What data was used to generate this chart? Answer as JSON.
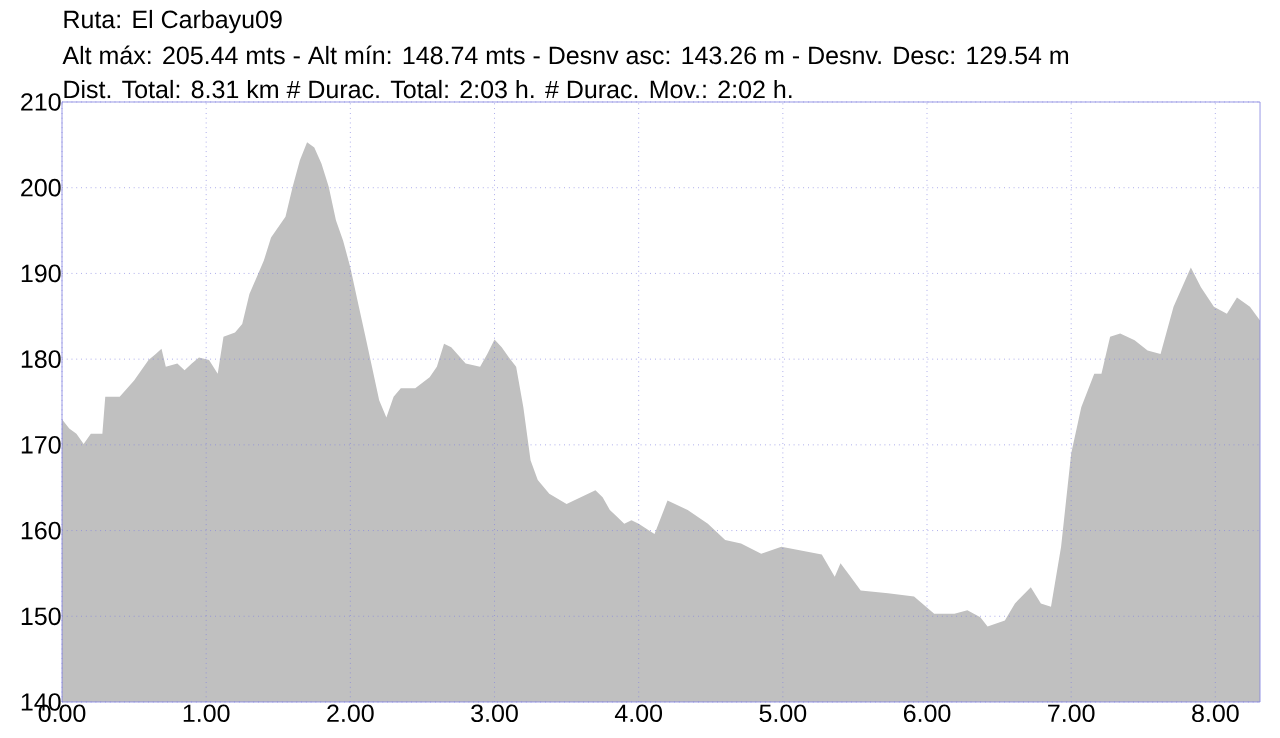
{
  "chart_data": {
    "type": "area",
    "title": "Ruta: El Carbayu09",
    "subtitle": "Alt máx: 205.44 mts - Alt mín: 148.74 mts - Desnv asc: 143.26 m - Desnv. Desc: 129.54 m",
    "annotations": [
      "Dist. Total: 8.31 km # Durac. Total: 2:03  h. # Durac. Mov.:  2:02  h."
    ],
    "x": [
      0,
      0.05,
      0.1,
      0.15,
      0.2,
      0.28,
      0.3,
      0.4,
      0.5,
      0.55,
      0.6,
      0.65,
      0.69,
      0.72,
      0.8,
      0.85,
      0.9,
      0.95,
      1.02,
      1.08,
      1.12,
      1.2,
      1.25,
      1.3,
      1.4,
      1.45,
      1.55,
      1.6,
      1.65,
      1.7,
      1.75,
      1.8,
      1.85,
      1.9,
      1.95,
      2.0,
      2.05,
      2.1,
      2.15,
      2.2,
      2.25,
      2.3,
      2.35,
      2.45,
      2.55,
      2.6,
      2.65,
      2.7,
      2.8,
      2.9,
      2.95,
      3.0,
      3.05,
      3.1,
      3.15,
      3.2,
      3.25,
      3.3,
      3.38,
      3.5,
      3.6,
      3.7,
      3.75,
      3.8,
      3.85,
      3.9,
      3.95,
      4.0,
      4.11,
      4.2,
      4.34,
      4.48,
      4.6,
      4.71,
      4.85,
      4.99,
      5.27,
      5.36,
      5.4,
      5.47,
      5.54,
      5.73,
      5.91,
      6.05,
      6.19,
      6.28,
      6.37,
      6.42,
      6.54,
      6.61,
      6.72,
      6.79,
      6.86,
      6.93,
      7.0,
      7.07,
      7.16,
      7.21,
      7.27,
      7.34,
      7.44,
      7.53,
      7.62,
      7.71,
      7.83,
      7.9,
      7.99,
      8.08,
      8.15,
      8.24,
      8.31
    ],
    "values": [
      173.0,
      171.9,
      171.3,
      170.1,
      171.3,
      171.3,
      175.6,
      175.6,
      177.5,
      178.7,
      179.9,
      180.6,
      181.2,
      179.1,
      179.5,
      178.7,
      179.5,
      180.2,
      179.9,
      178.3,
      182.6,
      183.1,
      184.1,
      187.6,
      191.5,
      194.2,
      196.6,
      200.1,
      203.2,
      205.3,
      204.7,
      202.8,
      200.1,
      196.2,
      193.8,
      190.7,
      186.8,
      183.0,
      179.1,
      175.2,
      173.2,
      175.6,
      176.6,
      176.6,
      177.9,
      179.1,
      181.8,
      181.4,
      179.5,
      179.1,
      180.6,
      182.3,
      181.4,
      180.2,
      179.1,
      174.4,
      168.2,
      165.9,
      164.3,
      163.1,
      163.9,
      164.7,
      163.9,
      162.4,
      161.6,
      160.8,
      161.2,
      160.8,
      159.6,
      163.5,
      162.4,
      160.8,
      158.9,
      158.5,
      157.3,
      158.1,
      157.2,
      154.6,
      156.2,
      154.6,
      153.0,
      152.7,
      152.3,
      150.3,
      150.3,
      150.7,
      149.9,
      148.8,
      149.5,
      151.5,
      153.4,
      151.5,
      151.1,
      158.1,
      169.0,
      174.4,
      178.3,
      178.3,
      182.6,
      183.0,
      182.2,
      181.0,
      180.6,
      186.1,
      190.7,
      188.4,
      186.1,
      185.3,
      187.2,
      186.1,
      184.5
    ],
    "color": "#c0c0c0",
    "grid": true,
    "xlim": [
      0,
      8.31
    ],
    "ylim": [
      140,
      210
    ],
    "xticks": [
      {
        "value": 0,
        "label": "0.00"
      },
      {
        "value": 1,
        "label": "1.00"
      },
      {
        "value": 2,
        "label": "2.00"
      },
      {
        "value": 3,
        "label": "3.00"
      },
      {
        "value": 4,
        "label": "4.00"
      },
      {
        "value": 5,
        "label": "5.00"
      },
      {
        "value": 6,
        "label": "6.00"
      },
      {
        "value": 7,
        "label": "7.00"
      },
      {
        "value": 8,
        "label": "8.00"
      }
    ],
    "yticks": [
      140,
      150,
      160,
      170,
      180,
      190,
      200,
      210
    ]
  }
}
